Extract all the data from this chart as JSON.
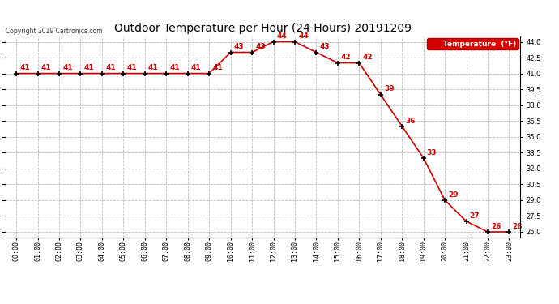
{
  "title": "Outdoor Temperature per Hour (24 Hours) 20191209",
  "copyright": "Copyright 2019 Cartronics.com",
  "legend_label": "Temperature  (°F)",
  "hours": [
    "00:00",
    "01:00",
    "02:00",
    "03:00",
    "04:00",
    "05:00",
    "06:00",
    "07:00",
    "08:00",
    "09:00",
    "10:00",
    "11:00",
    "12:00",
    "13:00",
    "14:00",
    "15:00",
    "16:00",
    "17:00",
    "18:00",
    "19:00",
    "20:00",
    "21:00",
    "22:00",
    "23:00"
  ],
  "temps": [
    41,
    41,
    41,
    41,
    41,
    41,
    41,
    41,
    41,
    41,
    43,
    43,
    44,
    44,
    43,
    42,
    42,
    39,
    36,
    33,
    29,
    27,
    26,
    26
  ],
  "ylim_min": 25.5,
  "ylim_max": 44.5,
  "yticks": [
    26.0,
    27.5,
    29.0,
    30.5,
    32.0,
    33.5,
    35.0,
    36.5,
    38.0,
    39.5,
    41.0,
    42.5,
    44.0
  ],
  "line_color": "#cc0000",
  "marker_color": "#000000",
  "label_color": "#cc0000",
  "grid_color": "#bbbbbb",
  "bg_color": "#ffffff",
  "title_fontsize": 10,
  "annot_fontsize": 6.5,
  "tick_fontsize": 6,
  "copyright_fontsize": 5.5,
  "legend_fontsize": 6.5
}
